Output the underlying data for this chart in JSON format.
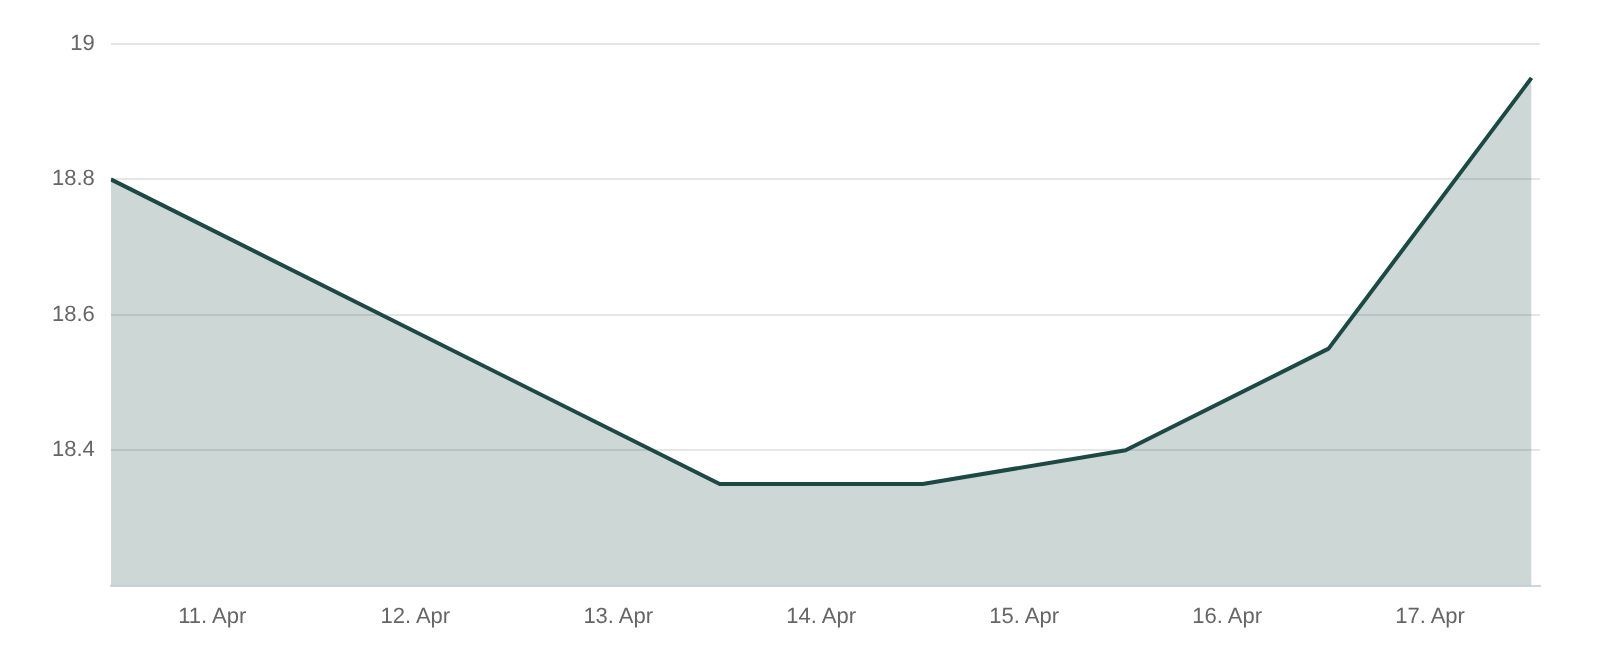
{
  "chart_data": {
    "type": "area",
    "x": [
      "--04-10T12:00",
      "--04-13T12:00",
      "--04-14T12:00",
      "--04-15T12:00",
      "--04-16T12:00",
      "--04-17T12:00"
    ],
    "series": [
      {
        "color": "#1b4a45",
        "values": [
          18.8,
          18.35,
          18.35,
          18.4,
          18.55,
          18.95
        ]
      }
    ],
    "xlim": [
      "--04-10T12:00",
      "--04-17T13:00"
    ],
    "xticks": [
      {
        "value": "--04-11",
        "label": "11. Apr"
      },
      {
        "value": "--04-12",
        "label": "12. Apr"
      },
      {
        "value": "--04-13",
        "label": "13. Apr"
      },
      {
        "value": "--04-14",
        "label": "14. Apr"
      },
      {
        "value": "--04-15",
        "label": "15. Apr"
      },
      {
        "value": "--04-16",
        "label": "16. Apr"
      },
      {
        "value": "--04-17",
        "label": "17. Apr"
      }
    ],
    "ylim": [
      18.2,
      19
    ],
    "yticks": [
      18.4,
      18.6,
      18.8,
      19
    ],
    "grid": "y",
    "legend": false,
    "marker": "none",
    "line_style": "solid"
  }
}
